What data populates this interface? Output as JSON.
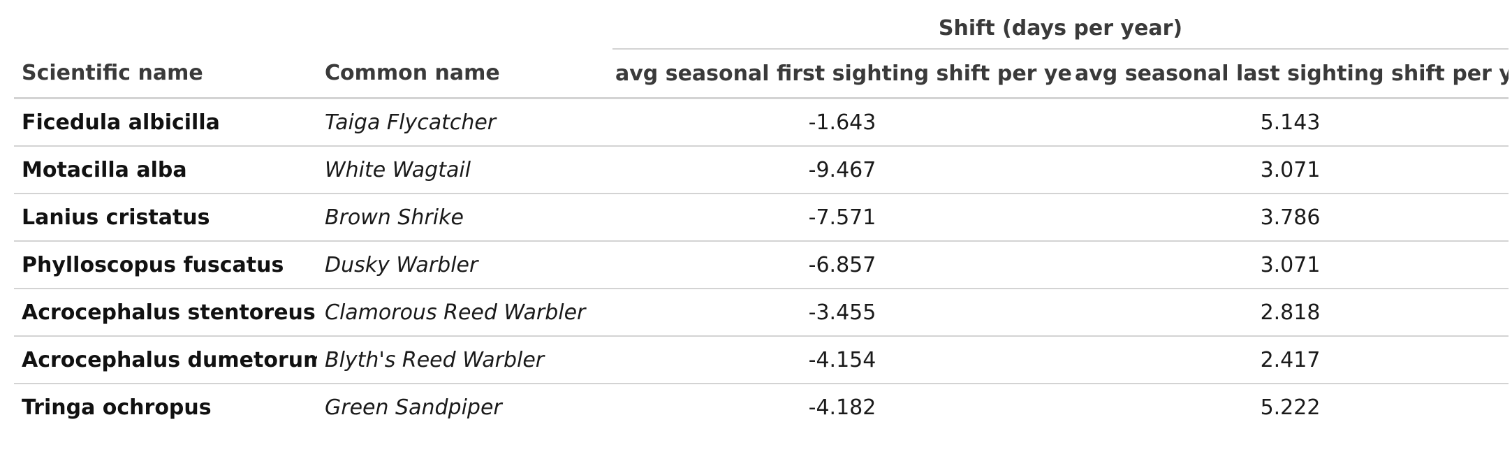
{
  "table": {
    "spanner_label": "Shift (days per year)",
    "columns": {
      "scientific_name": "Scientific name",
      "common_name": "Common name",
      "first_shift": "avg seasonal first sighting shift per year",
      "last_shift": "avg seasonal last sighting shift per year"
    },
    "rows": [
      {
        "scientific_name": "Ficedula albicilla",
        "common_name": "Taiga Flycatcher",
        "first_shift": "-1.643",
        "last_shift": "5.143"
      },
      {
        "scientific_name": "Motacilla alba",
        "common_name": "White Wagtail",
        "first_shift": "-9.467",
        "last_shift": "3.071"
      },
      {
        "scientific_name": "Lanius cristatus",
        "common_name": "Brown Shrike",
        "first_shift": "-7.571",
        "last_shift": "3.786"
      },
      {
        "scientific_name": "Phylloscopus fuscatus",
        "common_name": "Dusky Warbler",
        "first_shift": "-6.857",
        "last_shift": "3.071"
      },
      {
        "scientific_name": "Acrocephalus stentoreus",
        "common_name": "Clamorous Reed Warbler",
        "first_shift": "-3.455",
        "last_shift": "2.818"
      },
      {
        "scientific_name": "Acrocephalus dumetorum",
        "common_name": "Blyth's Reed Warbler",
        "first_shift": "-4.154",
        "last_shift": "2.417"
      },
      {
        "scientific_name": "Tringa ochropus",
        "common_name": "Green Sandpiper",
        "first_shift": "-4.182",
        "last_shift": "5.222"
      }
    ]
  }
}
